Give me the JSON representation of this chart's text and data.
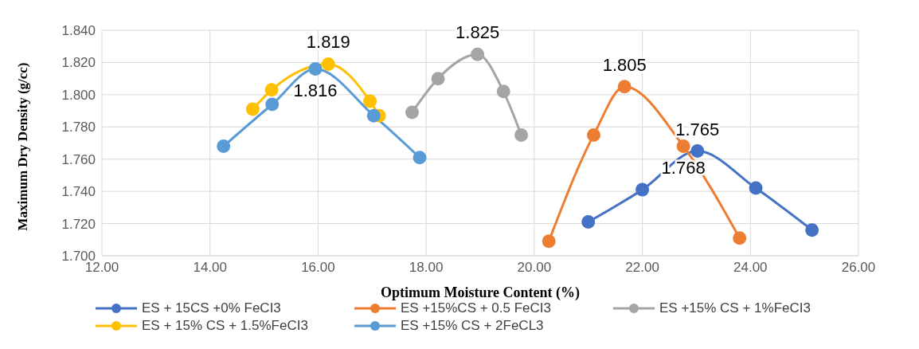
{
  "chart_data": {
    "type": "line",
    "xlabel": "Optimum Moisture Content (%)",
    "ylabel": "Maximum Dry Density (g/cc)",
    "xlim": [
      12,
      26
    ],
    "ylim": [
      1.7,
      1.84
    ],
    "xticks": [
      {
        "value": 12,
        "label": "12.00"
      },
      {
        "value": 14,
        "label": "14.00"
      },
      {
        "value": 16,
        "label": "16.00"
      },
      {
        "value": 18,
        "label": "18.00"
      },
      {
        "value": 20,
        "label": "20.00"
      },
      {
        "value": 22,
        "label": "22.00"
      },
      {
        "value": 24,
        "label": "24.00"
      },
      {
        "value": 26,
        "label": "26.00"
      }
    ],
    "yticks": [
      {
        "value": 1.7,
        "label": "1.700"
      },
      {
        "value": 1.72,
        "label": "1.720"
      },
      {
        "value": 1.74,
        "label": "1.740"
      },
      {
        "value": 1.76,
        "label": "1.760"
      },
      {
        "value": 1.78,
        "label": "1.780"
      },
      {
        "value": 1.8,
        "label": "1.800"
      },
      {
        "value": 1.82,
        "label": "1.820"
      },
      {
        "value": 1.84,
        "label": "1.840"
      }
    ],
    "grid": true,
    "legend": "bottom",
    "marker": "circle",
    "line_style": "solid",
    "series": [
      {
        "name": "ES + 15CS +0% FeCI3",
        "color": "#4472c4",
        "x": [
          21.0,
          22.0,
          23.02,
          24.1,
          25.14
        ],
        "values": [
          1.721,
          1.741,
          1.765,
          1.742,
          1.716
        ],
        "value_labels": [
          null,
          null,
          "1.765",
          null,
          null
        ]
      },
      {
        "name": "ES +15%CS + 0.5 FeCI3",
        "color": "#ed7d31",
        "x": [
          20.27,
          21.1,
          21.67,
          22.76,
          23.8
        ],
        "values": [
          1.709,
          1.775,
          1.805,
          1.768,
          1.711
        ],
        "value_labels": [
          null,
          null,
          "1.805",
          "1.768",
          null
        ]
      },
      {
        "name": "ES +15% CS + 1%FeCI3",
        "color": "#a5a5a5",
        "x": [
          17.74,
          18.22,
          18.95,
          19.43,
          19.76
        ],
        "values": [
          1.789,
          1.81,
          1.825,
          1.802,
          1.775
        ],
        "value_labels": [
          null,
          null,
          "1.825",
          null,
          null
        ]
      },
      {
        "name": "ES + 15% CS + 1.5%FeCI3",
        "color": "#ffc000",
        "x": [
          14.79,
          15.14,
          16.19,
          16.96,
          17.13
        ],
        "values": [
          1.791,
          1.803,
          1.819,
          1.796,
          1.787
        ],
        "value_labels": [
          null,
          null,
          "1.819",
          null,
          null
        ]
      },
      {
        "name": "ES +15% CS + 2FeCL3",
        "color": "#5b9bd5",
        "x": [
          14.25,
          15.15,
          15.95,
          17.03,
          17.88
        ],
        "values": [
          1.768,
          1.794,
          1.816,
          1.787,
          1.761
        ],
        "value_labels": [
          null,
          null,
          "1.816",
          null,
          null
        ]
      }
    ]
  }
}
